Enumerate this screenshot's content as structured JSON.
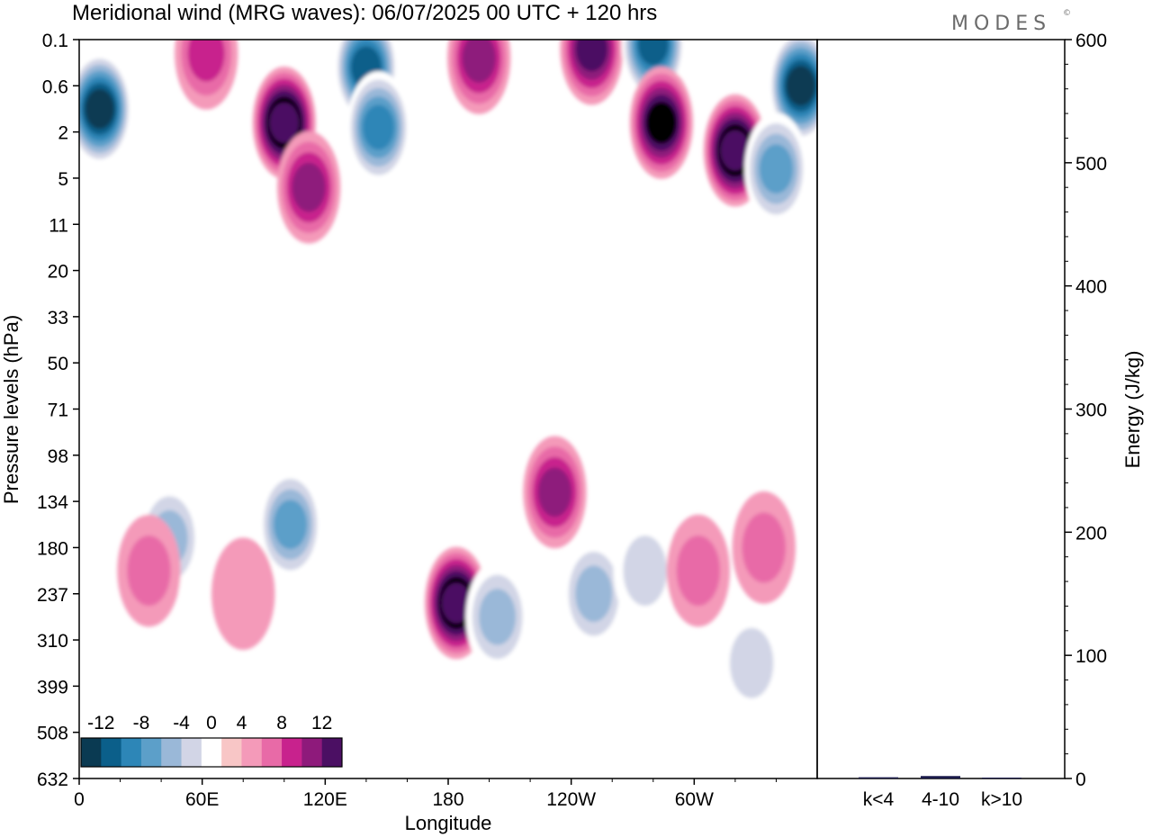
{
  "title": "Meridional wind (MRG waves):  06/07/2025  00 UTC  + 120 hrs",
  "brand": "MODES",
  "brand_mark": "©",
  "chart_data": [
    {
      "type": "heatmap",
      "title": "Meridional wind (MRG waves):  06/07/2025  00 UTC  + 120 hrs",
      "xlabel": "Longitude",
      "ylabel": "Pressure levels (hPa)",
      "x_ticks": [
        {
          "lon": 0,
          "label": "0"
        },
        {
          "lon": 60,
          "label": "60E"
        },
        {
          "lon": 120,
          "label": "120E"
        },
        {
          "lon": 180,
          "label": "180"
        },
        {
          "lon": 240,
          "label": "120W"
        },
        {
          "lon": 300,
          "label": "60W"
        }
      ],
      "xlim": [
        0,
        360
      ],
      "y_levels": [
        "0.1",
        "0.6",
        "2",
        "5",
        "11",
        "20",
        "33",
        "50",
        "71",
        "98",
        "134",
        "180",
        "237",
        "310",
        "399",
        "508",
        "632"
      ],
      "colorbar": {
        "labels": [
          "-12",
          "-8",
          "-4",
          "0",
          "4",
          "8",
          "12"
        ],
        "levels": [
          -14,
          -12,
          -10,
          -8,
          -6,
          -4,
          -2,
          2,
          4,
          6,
          8,
          10,
          12,
          14
        ],
        "colors": [
          "#0a3a52",
          "#0b5f8a",
          "#2d86b7",
          "#5c9fc9",
          "#9ab8d8",
          "#d2d5e6",
          "#ffffff",
          "#f8c6c6",
          "#f49ab9",
          "#e86aa7",
          "#c8228d",
          "#8e1a7b",
          "#4b0f63"
        ]
      },
      "features": [
        {
          "lon": 10,
          "level_index": 1.5,
          "value": -14
        },
        {
          "lon": 100,
          "level_index": 1.8,
          "value": 14
        },
        {
          "lon": 112,
          "level_index": 3.2,
          "value": 8
        },
        {
          "lon": 62,
          "level_index": 0.3,
          "value": 6
        },
        {
          "lon": 140,
          "level_index": 0.6,
          "value": -12
        },
        {
          "lon": 146,
          "level_index": 1.9,
          "value": -10
        },
        {
          "lon": 195,
          "level_index": 0.4,
          "value": 8
        },
        {
          "lon": 250,
          "level_index": 0.2,
          "value": 10
        },
        {
          "lon": 280,
          "level_index": 0.1,
          "value": -12
        },
        {
          "lon": 284,
          "level_index": 1.8,
          "value": 12
        },
        {
          "lon": 320,
          "level_index": 2.4,
          "value": 14
        },
        {
          "lon": 352,
          "level_index": 1.0,
          "value": -14
        },
        {
          "lon": 340,
          "level_index": 2.8,
          "value": -8
        },
        {
          "lon": 184,
          "level_index": 12.2,
          "value": 14
        },
        {
          "lon": 204,
          "level_index": 12.5,
          "value": -6
        },
        {
          "lon": 103,
          "level_index": 10.5,
          "value": -8
        },
        {
          "lon": 44,
          "level_index": 10.8,
          "value": -6
        },
        {
          "lon": 232,
          "level_index": 9.8,
          "value": 8
        },
        {
          "lon": 251,
          "level_index": 12.0,
          "value": -6
        },
        {
          "lon": 276,
          "level_index": 11.5,
          "value": -4
        },
        {
          "lon": 302,
          "level_index": 11.5,
          "value": 4
        },
        {
          "lon": 334,
          "level_index": 11.0,
          "value": 4
        },
        {
          "lon": 328,
          "level_index": 13.5,
          "value": -4
        },
        {
          "lon": 34,
          "level_index": 11.5,
          "value": 4
        },
        {
          "lon": 80,
          "level_index": 12.0,
          "value": 2
        }
      ]
    },
    {
      "type": "bar",
      "categories": [
        "k<4",
        "4-10",
        "k>10"
      ],
      "values": [
        1,
        2,
        0.5
      ],
      "ylabel": "Energy (J/kg)",
      "ylim": [
        0,
        600
      ],
      "y_ticks": [
        0,
        100,
        200,
        300,
        400,
        500,
        600
      ],
      "bar_color": "#1a1a4a"
    }
  ]
}
